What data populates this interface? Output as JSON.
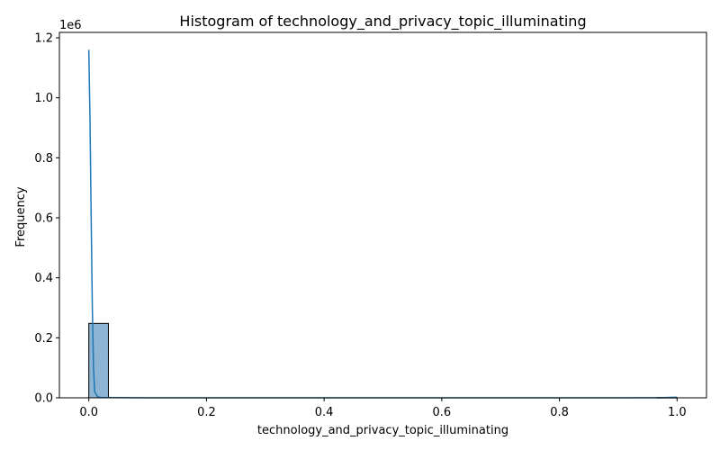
{
  "chart_data": {
    "type": "bar",
    "title": "Histogram of technology_and_privacy_topic_illuminating",
    "xlabel": "technology_and_privacy_topic_illuminating",
    "ylabel": "Frequency",
    "y_offset_label": "1e6",
    "xlim": [
      -0.05,
      1.05
    ],
    "ylim": [
      0,
      1.218
    ],
    "x_ticks": [
      0.0,
      0.2,
      0.4,
      0.6,
      0.8,
      1.0
    ],
    "x_tick_labels": [
      "0.0",
      "0.2",
      "0.4",
      "0.6",
      "0.8",
      "1.0"
    ],
    "y_ticks": [
      0.0,
      0.2,
      0.4,
      0.6,
      0.8,
      1.0,
      1.2
    ],
    "y_tick_labels": [
      "0.0",
      "0.2",
      "0.4",
      "0.6",
      "0.8",
      "1.0",
      "1.2"
    ],
    "grid": false,
    "bins": {
      "start": 0.0,
      "width": 0.0333,
      "counts": [
        0.248,
        0,
        0,
        0,
        0,
        0,
        0,
        0,
        0,
        0,
        0,
        0,
        0,
        0,
        0,
        0,
        0,
        0,
        0,
        0,
        0,
        0,
        0,
        0,
        0,
        0,
        0,
        0,
        0,
        0.001
      ]
    },
    "kde": {
      "x": [
        0.0,
        0.002,
        0.004,
        0.006,
        0.008,
        0.01,
        0.015,
        0.02,
        0.1,
        0.3,
        0.5,
        0.7,
        0.9,
        0.97,
        0.99,
        1.0
      ],
      "y": [
        1.16,
        0.93,
        0.6,
        0.3,
        0.1,
        0.02,
        0.003,
        0.001,
        0.0,
        0.0,
        0.0,
        0.0,
        0.0,
        0.0005,
        0.0015,
        0.002
      ]
    },
    "colors": {
      "bar_fill": "#8db4d2",
      "bar_edge": "#000000",
      "kde_line": "#1f77b4"
    }
  }
}
